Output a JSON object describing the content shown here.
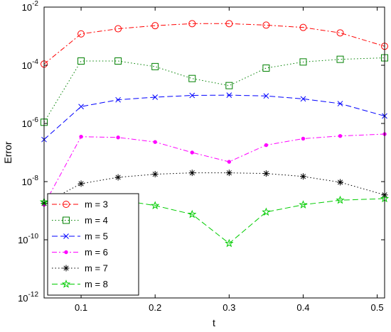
{
  "chart_data": {
    "type": "line",
    "title": "",
    "xlabel": "t",
    "ylabel": "Error",
    "yscale": "log",
    "xlim": [
      0.05,
      0.51
    ],
    "ylim": [
      1e-12,
      0.01
    ],
    "grid": false,
    "legend_position": "bottom-left",
    "x_ticks": [
      0.1,
      0.2,
      0.3,
      0.4,
      0.5
    ],
    "x_tick_labels": [
      "0.1",
      "0.2",
      "0.3",
      "0.4",
      "0.5"
    ],
    "y_ticks": [
      1e-12,
      1e-10,
      1e-08,
      1e-06,
      0.0001,
      0.01
    ],
    "y_tick_labels": [
      {
        "base": "10",
        "exp": "-12"
      },
      {
        "base": "10",
        "exp": "-10"
      },
      {
        "base": "10",
        "exp": "-8"
      },
      {
        "base": "10",
        "exp": "-6"
      },
      {
        "base": "10",
        "exp": "-4"
      },
      {
        "base": "10",
        "exp": "-2"
      }
    ],
    "x": [
      0.05,
      0.1,
      0.15,
      0.2,
      0.25,
      0.3,
      0.35,
      0.4,
      0.45,
      0.51
    ],
    "series": [
      {
        "name": "m = 3",
        "color": "#ff0000",
        "marker": "circle",
        "dash": "dashdot",
        "values": [
          0.00011,
          0.0012,
          0.0018,
          0.0023,
          0.0027,
          0.0027,
          0.0024,
          0.002,
          0.0013,
          0.00045
        ]
      },
      {
        "name": "m = 4",
        "color": "#008000",
        "marker": "square",
        "dash": "dotted",
        "values": [
          1.1e-06,
          0.00014,
          0.00014,
          9e-05,
          3.5e-05,
          2e-05,
          8e-05,
          0.00013,
          0.00016,
          0.00018
        ]
      },
      {
        "name": "m = 5",
        "color": "#0000ff",
        "marker": "x",
        "dash": "dashed",
        "values": [
          2.8e-07,
          3.8e-06,
          6.5e-06,
          8e-06,
          9.2e-06,
          9.4e-06,
          8.8e-06,
          7e-06,
          4.8e-06,
          1.8e-06
        ]
      },
      {
        "name": "m = 6",
        "color": "#ff00ff",
        "marker": "dot",
        "dash": "dashdot",
        "values": [
          1.6e-09,
          3.5e-07,
          3.3e-07,
          2.3e-07,
          1e-07,
          4.8e-08,
          1.8e-07,
          3e-07,
          3.7e-07,
          4.3e-07
        ]
      },
      {
        "name": "m = 7",
        "color": "#000000",
        "marker": "star",
        "dash": "dotted",
        "values": [
          1.8e-09,
          8.5e-09,
          1.4e-08,
          1.8e-08,
          2e-08,
          2e-08,
          1.9e-08,
          1.5e-08,
          9.5e-09,
          3.5e-09
        ]
      },
      {
        "name": "m = 8",
        "color": "#00cc00",
        "marker": "pentagram",
        "dash": "dashed",
        "values": [
          2e-09,
          2.5e-09,
          2.4e-09,
          1.5e-09,
          7.5e-10,
          7.5e-11,
          9e-10,
          1.6e-09,
          2.3e-09,
          2.6e-09
        ]
      }
    ]
  }
}
